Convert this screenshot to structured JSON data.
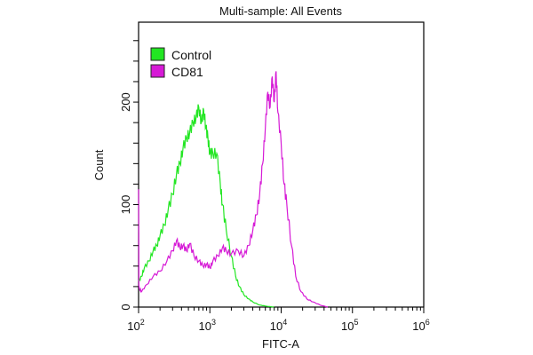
{
  "chart_data": {
    "type": "line",
    "title": "Multi-sample: All Events",
    "xlabel": "FITC-A",
    "ylabel": "Count",
    "xscale": "log",
    "xlim": [
      100,
      1000000
    ],
    "ylim": [
      0,
      278
    ],
    "x_ticks": [
      {
        "base": "10",
        "exp": "2",
        "value": 100
      },
      {
        "base": "10",
        "exp": "3",
        "value": 1000
      },
      {
        "base": "10",
        "exp": "4",
        "value": 10000
      },
      {
        "base": "10",
        "exp": "5",
        "value": 100000
      },
      {
        "base": "10",
        "exp": "6",
        "value": 1000000
      }
    ],
    "y_ticks": [
      {
        "label": "0",
        "value": 0
      },
      {
        "label": "100",
        "value": 100
      },
      {
        "label": "200",
        "value": 200
      }
    ],
    "y_minor_step": 20,
    "legend_position": "top-left",
    "series": [
      {
        "name": "Control",
        "color": "#22e622",
        "x": [
          100,
          110,
          120,
          140,
          160,
          180,
          200,
          230,
          260,
          300,
          340,
          380,
          420,
          470,
          520,
          580,
          640,
          700,
          760,
          820,
          880,
          940,
          1000,
          1100,
          1250,
          1400,
          1500,
          1700,
          2000,
          2300,
          2600,
          3000,
          3500,
          4000,
          5000,
          6000,
          8000
        ],
        "y": [
          25,
          30,
          38,
          45,
          55,
          60,
          70,
          80,
          95,
          110,
          130,
          140,
          155,
          165,
          170,
          180,
          185,
          195,
          180,
          192,
          175,
          165,
          150,
          150,
          150,
          120,
          100,
          75,
          50,
          30,
          20,
          12,
          8,
          5,
          2,
          1,
          0
        ]
      },
      {
        "name": "CD81",
        "color": "#d61ad6",
        "x": [
          100,
          101,
          103,
          110,
          130,
          160,
          200,
          250,
          300,
          340,
          380,
          420,
          470,
          520,
          600,
          700,
          800,
          900,
          1000,
          1100,
          1300,
          1500,
          1700,
          2000,
          2500,
          3000,
          3500,
          4000,
          4500,
          5000,
          5500,
          6000,
          6500,
          7000,
          7500,
          8000,
          8500,
          9000,
          10000,
          11000,
          12000,
          14000,
          16000,
          19000,
          23000,
          28000,
          35000,
          45000
        ],
        "y": [
          115,
          20,
          18,
          15,
          22,
          30,
          35,
          45,
          55,
          65,
          58,
          60,
          55,
          62,
          50,
          45,
          40,
          42,
          38,
          45,
          50,
          58,
          55,
          52,
          55,
          50,
          60,
          75,
          90,
          110,
          140,
          175,
          210,
          195,
          225,
          200,
          230,
          190,
          160,
          120,
          100,
          60,
          30,
          15,
          8,
          5,
          2,
          0
        ]
      }
    ]
  }
}
